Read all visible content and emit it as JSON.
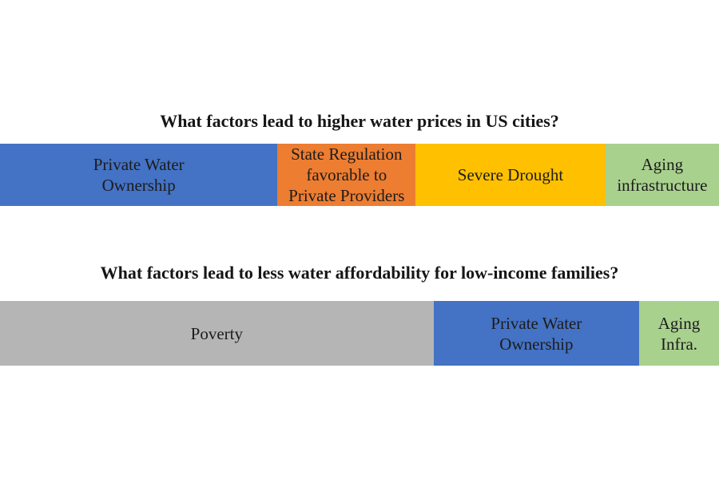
{
  "page": {
    "background_color": "#ffffff",
    "text_color": "#1c1c1c",
    "title_color": "#161616"
  },
  "chart_data": [
    {
      "type": "bar",
      "subtype": "proportional-stacked-horizontal",
      "title": "What factors lead to higher water prices in US cities?",
      "legend_position": "none",
      "grid": false,
      "axis_labels": false,
      "segments": [
        {
          "label": "Private Water\nOwnership",
          "name": "private-water-ownership",
          "color": "#4472C4",
          "percent": 38.6
        },
        {
          "label": "State Regulation\nfavorable to\nPrivate Providers",
          "name": "state-regulation-favorable-to-private-providers",
          "color": "#ED7D31",
          "percent": 19.2
        },
        {
          "label": "Severe Drought",
          "name": "severe-drought",
          "color": "#FFC000",
          "percent": 26.4
        },
        {
          "label": "Aging\ninfrastructure",
          "name": "aging-infrastructure",
          "color": "#A9D18E",
          "percent": 15.8
        }
      ]
    },
    {
      "type": "bar",
      "subtype": "proportional-stacked-horizontal",
      "title": "What factors lead to less water affordability for low-income families?",
      "legend_position": "none",
      "grid": false,
      "axis_labels": false,
      "segments": [
        {
          "label": "Poverty",
          "name": "poverty",
          "color": "#B5B5B5",
          "percent": 60.3
        },
        {
          "label": "Private Water\nOwnership",
          "name": "private-water-ownership",
          "color": "#4472C4",
          "percent": 28.6
        },
        {
          "label": "Aging\nInfra.",
          "name": "aging-infra",
          "color": "#A9D18E",
          "percent": 11.1
        }
      ]
    }
  ]
}
